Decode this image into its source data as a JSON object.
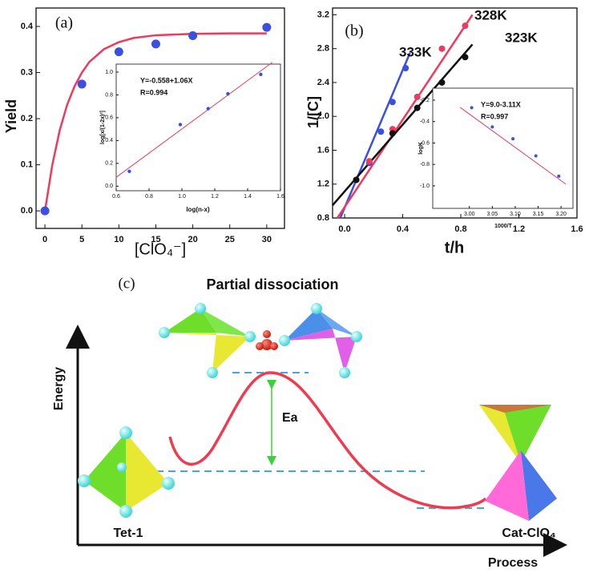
{
  "chart_data": [
    {
      "type": "scatter",
      "panel_label": "(a)",
      "ylabel": "Yield",
      "xlabel": "[ClO₄⁻]",
      "xlim": [
        -1.2,
        32.4
      ],
      "ylim": [
        -0.038,
        0.44
      ],
      "xticks": [
        0,
        5,
        10,
        15,
        20,
        25,
        30
      ],
      "yticks": [
        {
          "value": 0.0,
          "label": "0.0"
        },
        0.1,
        0.2,
        0.3,
        0.4
      ],
      "series": [
        {
          "mode": "line",
          "color": "#ee3a5c",
          "x": [
            0,
            1,
            2,
            3,
            4,
            5,
            6,
            8,
            10,
            12,
            15,
            20,
            25,
            30
          ],
          "values": [
            0,
            0.1,
            0.175,
            0.23,
            0.27,
            0.3,
            0.323,
            0.351,
            0.366,
            0.375,
            0.381,
            0.384,
            0.385,
            0.385
          ]
        },
        {
          "mode": "markers",
          "color": "#3b4fe0",
          "x": [
            0,
            5,
            10,
            15,
            20,
            30
          ],
          "values": [
            0.0,
            0.275,
            0.345,
            0.362,
            0.38,
            0.398
          ]
        }
      ]
    },
    {
      "type": "scatter",
      "xlabel": "log(n-x)",
      "ylabel": "log[x/(1-2x)²]",
      "annotations": [
        "Y=-0.558+1.06X",
        "R=0.994"
      ],
      "xlim": [
        0.6,
        1.6
      ],
      "ylim": [
        -0.04,
        1.07
      ],
      "xticks": [
        0.6,
        0.8,
        {
          "value": 1.0,
          "label": "1.0"
        },
        1.2,
        1.4,
        1.6
      ],
      "yticks": [
        {
          "value": 0.0,
          "label": "0.0"
        },
        0.2,
        0.4,
        0.6,
        0.8,
        {
          "value": 1.0,
          "label": "1.0"
        }
      ],
      "series": [
        {
          "mode": "line",
          "color": "#ee3a5c",
          "x": [
            0.6,
            1.55
          ],
          "values": [
            0.078,
            1.085
          ]
        },
        {
          "mode": "markers",
          "color": "#3b4fe0",
          "x": [
            0.68,
            0.99,
            1.16,
            1.28,
            1.48
          ],
          "values": [
            0.13,
            0.54,
            0.68,
            0.81,
            0.98
          ]
        }
      ]
    },
    {
      "type": "scatter",
      "panel_label": "(b)",
      "ylabel": "1/[C]",
      "xlabel": "t/h",
      "xlim": [
        -0.083,
        1.6
      ],
      "ylim": [
        0.8,
        3.28
      ],
      "xticks": [
        {
          "value": 0.0,
          "label": "0.0"
        },
        0.4,
        0.8,
        1.2,
        1.6
      ],
      "yticks": [
        0.8,
        1.2,
        1.6,
        {
          "value": 2.0,
          "label": "2.0"
        },
        2.4,
        2.8,
        3.2
      ],
      "series": [
        {
          "mode": "line",
          "color": "#3b4fe0",
          "x": [
            -0.03,
            0.45
          ],
          "values": [
            0.8,
            2.75
          ]
        },
        {
          "mode": "line",
          "color": "#ee3a5c",
          "x": [
            -0.05,
            0.88
          ],
          "values": [
            0.8,
            3.2
          ]
        },
        {
          "mode": "line",
          "color": "#111111",
          "x": [
            -0.083,
            0.88
          ],
          "values": [
            0.95,
            2.85
          ]
        },
        {
          "mode": "markers",
          "name": "333K",
          "color": "#3b4fe0",
          "x": [
            0.08,
            0.17,
            0.25,
            0.33,
            0.42
          ],
          "values": [
            1.25,
            1.45,
            1.82,
            2.17,
            2.57
          ]
        },
        {
          "mode": "markers",
          "name": "328K",
          "color": "#ee3a5c",
          "x": [
            0.08,
            0.17,
            0.33,
            0.5,
            0.67,
            0.83
          ],
          "values": [
            1.25,
            1.47,
            1.85,
            2.23,
            2.8,
            3.07
          ]
        },
        {
          "mode": "markers",
          "name": "323K",
          "color": "#111111",
          "x": [
            0.08,
            0.33,
            0.5,
            0.67,
            0.83
          ],
          "values": [
            1.25,
            1.8,
            2.1,
            2.4,
            2.7
          ]
        }
      ]
    },
    {
      "type": "scatter",
      "xlabel": "1000/T",
      "ylabel": "logK",
      "annotations": [
        "Y=9.0-3.11X",
        "R=0.997"
      ],
      "xlim": [
        2.92,
        3.226
      ],
      "ylim": [
        -1.21,
        -0.088
      ],
      "xticks": [
        {
          "value": 3.0,
          "label": "3.00"
        },
        3.05,
        {
          "value": 3.1,
          "label": "3.10"
        },
        3.15,
        {
          "value": 3.2,
          "label": "3.20"
        }
      ],
      "yticks": [
        {
          "value": -1.0,
          "label": "-1.0"
        },
        -0.8,
        -0.6,
        -0.4,
        -0.2
      ],
      "series": [
        {
          "mode": "line",
          "color": "#ee3a5c",
          "x": [
            2.98,
            3.21
          ],
          "values": [
            -0.268,
            -0.983
          ]
        },
        {
          "mode": "markers",
          "color": "#3b4fe0",
          "x": [
            3.005,
            3.05,
            3.095,
            3.145,
            3.195
          ],
          "values": [
            -0.27,
            -0.45,
            -0.56,
            -0.72,
            -0.91
          ]
        }
      ]
    }
  ],
  "diagram": {
    "panel_label": "(c)",
    "title": "Partial dissociation",
    "ylabel": "Energy",
    "xlabel": "Process",
    "barrier_label": "Ea",
    "start_label": "Tet-1",
    "end_label": "Cat-ClO₄"
  }
}
